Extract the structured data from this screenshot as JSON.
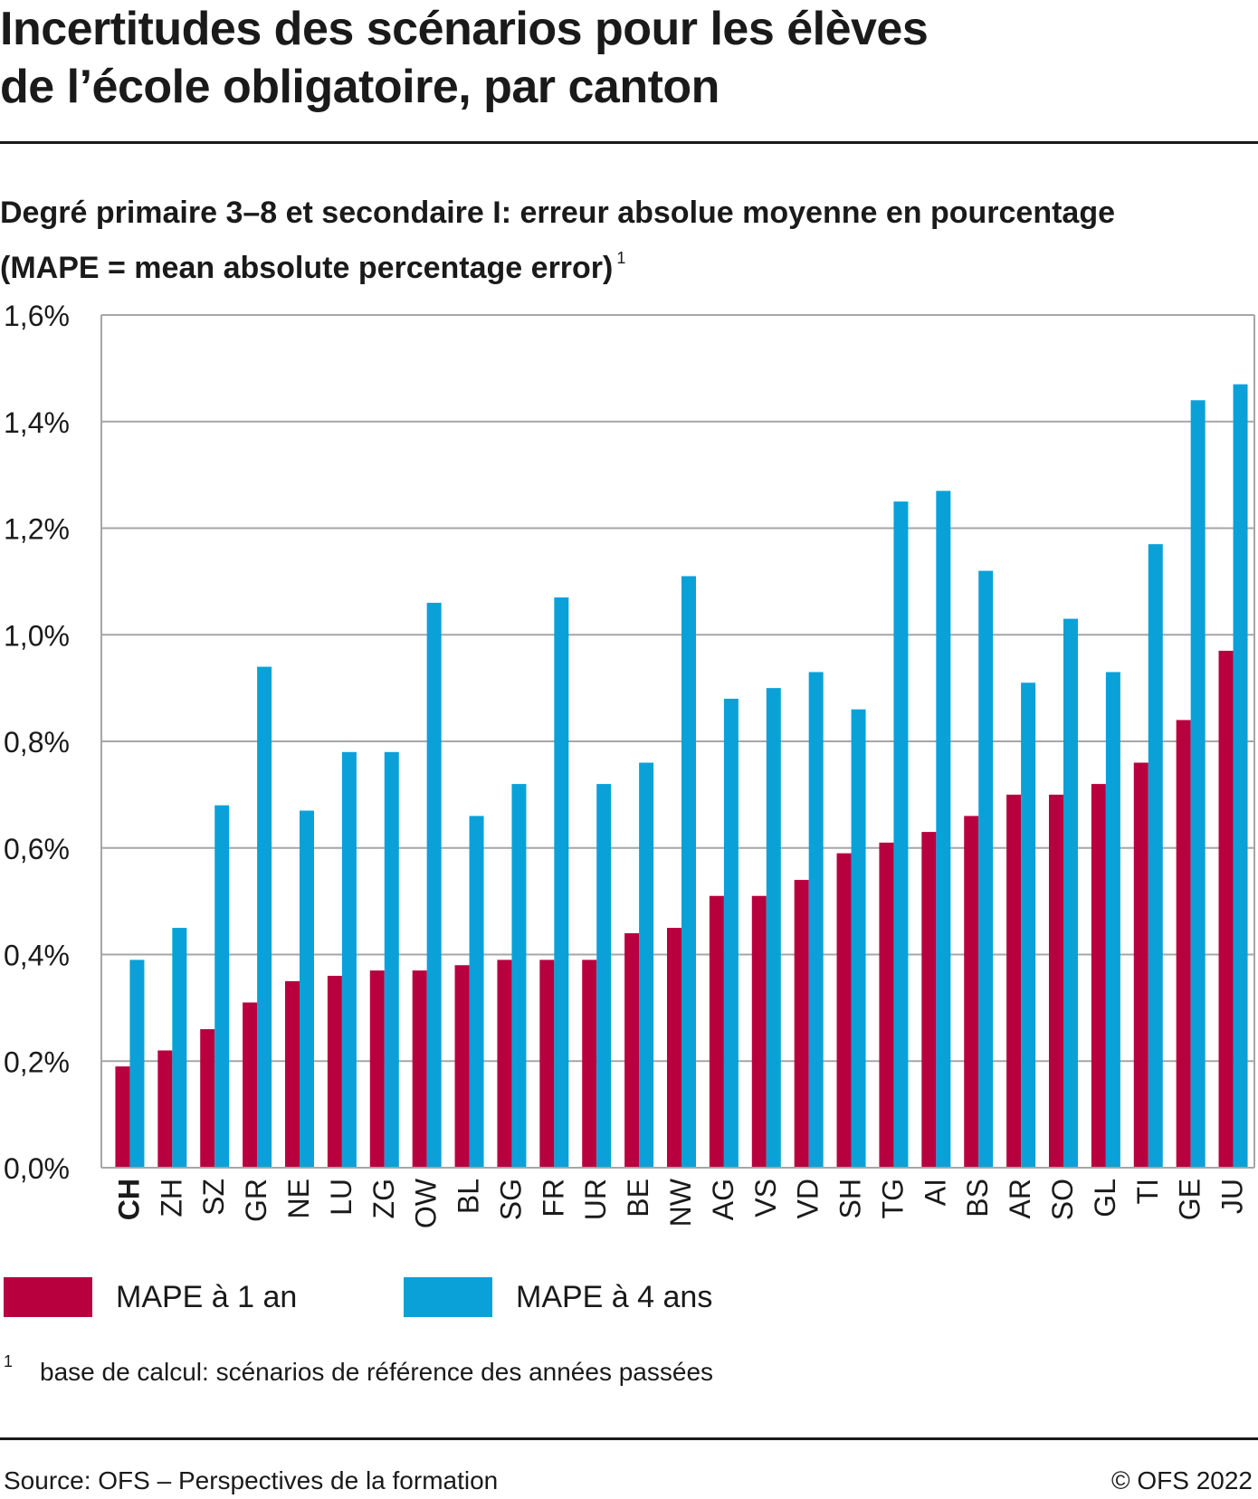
{
  "title_lines": [
    "Incertitudes des scénarios pour les élèves",
    "de l’école obligatoire, par canton"
  ],
  "subtitle_line1": "Degré primaire 3–8 et secondaire I: erreur absolue moyenne en pourcentage",
  "subtitle_line2": "(MAPE = mean absolute percentage error)",
  "subtitle_note": "1",
  "colors": {
    "series1": "#b8003f",
    "series2": "#0aa1d8",
    "grid": "#a6a6a6",
    "text": "#1a1a1a"
  },
  "chart_data": {
    "type": "bar",
    "title": "Degré primaire 3–8 et secondaire I: erreur absolue moyenne en pourcentage (MAPE = mean absolute percentage error)",
    "xlabel": "",
    "ylabel": "",
    "ylim": [
      0,
      1.6
    ],
    "yticks": [
      0.0,
      0.2,
      0.4,
      0.6,
      0.8,
      1.0,
      1.2,
      1.4,
      1.6
    ],
    "ytick_labels": [
      "0,0%",
      "0,2%",
      "0,4%",
      "0,6%",
      "0,8%",
      "1,0%",
      "1,2%",
      "1,4%",
      "1,6%"
    ],
    "grid": true,
    "categories": [
      "CH",
      "ZH",
      "SZ",
      "GR",
      "NE",
      "LU",
      "ZG",
      "OW",
      "BL",
      "SG",
      "FR",
      "UR",
      "BE",
      "NW",
      "AG",
      "VS",
      "VD",
      "SH",
      "TG",
      "AI",
      "BS",
      "AR",
      "SO",
      "GL",
      "TI",
      "GE",
      "JU"
    ],
    "bold_categories": [
      "CH"
    ],
    "series": [
      {
        "name": "MAPE à 1 an",
        "color": "#b8003f",
        "values": [
          0.19,
          0.22,
          0.26,
          0.31,
          0.35,
          0.36,
          0.37,
          0.37,
          0.38,
          0.39,
          0.39,
          0.39,
          0.44,
          0.45,
          0.51,
          0.51,
          0.54,
          0.59,
          0.61,
          0.63,
          0.66,
          0.7,
          0.7,
          0.72,
          0.76,
          0.84,
          0.97
        ]
      },
      {
        "name": "MAPE à 4 ans",
        "color": "#0aa1d8",
        "values": [
          0.39,
          0.45,
          0.68,
          0.94,
          0.67,
          0.78,
          0.78,
          1.06,
          0.66,
          0.72,
          1.07,
          0.72,
          0.76,
          1.11,
          0.88,
          0.9,
          0.93,
          0.86,
          1.25,
          1.27,
          1.12,
          0.91,
          1.03,
          0.93,
          1.17,
          1.44,
          1.47
        ]
      }
    ],
    "legend_position": "bottom-left"
  },
  "legend": [
    {
      "label": "MAPE à 1 an",
      "color": "#b8003f"
    },
    {
      "label": "MAPE à 4 ans",
      "color": "#0aa1d8"
    }
  ],
  "footnote": {
    "number": "1",
    "text": "base de calcul: scénarios de référence des années passées"
  },
  "footer": {
    "source": "Source: OFS – Perspectives de la formation",
    "copyright": "© OFS 2022"
  }
}
